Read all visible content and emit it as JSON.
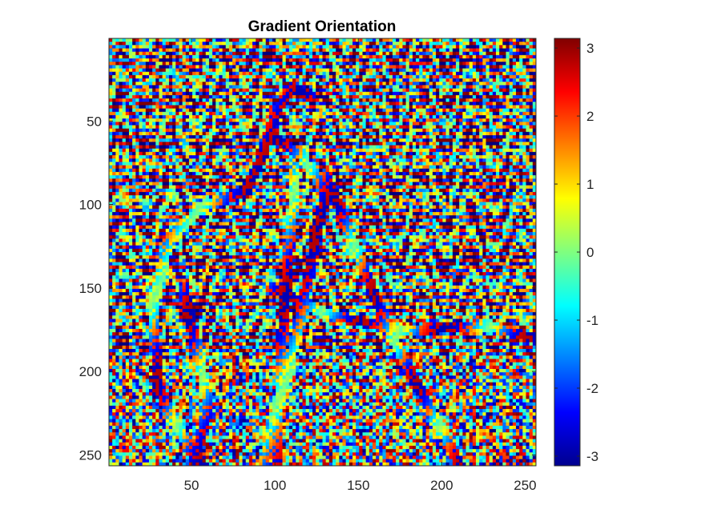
{
  "chart_data": {
    "type": "heatmap",
    "title": "Gradient Orientation",
    "xlabel": "",
    "ylabel": "",
    "xlim": [
      0.5,
      256.5
    ],
    "ylim": [
      0.5,
      256.5
    ],
    "y_direction": "reverse",
    "x_ticks": [
      50,
      100,
      150,
      200,
      250
    ],
    "y_ticks": [
      50,
      100,
      150,
      200,
      250
    ],
    "x_tick_labels": [
      "50",
      "100",
      "150",
      "200",
      "250"
    ],
    "y_tick_labels": [
      "50",
      "100",
      "150",
      "200",
      "250"
    ],
    "colormap": "jet",
    "colorbar": {
      "limits": [
        -3.1416,
        3.1416
      ],
      "ticks": [
        3,
        2,
        1,
        0,
        -1,
        -2,
        -3
      ],
      "tick_labels": [
        "3",
        "2",
        "1",
        "0",
        "-1",
        "-2",
        "-3"
      ]
    },
    "grid": false
  }
}
